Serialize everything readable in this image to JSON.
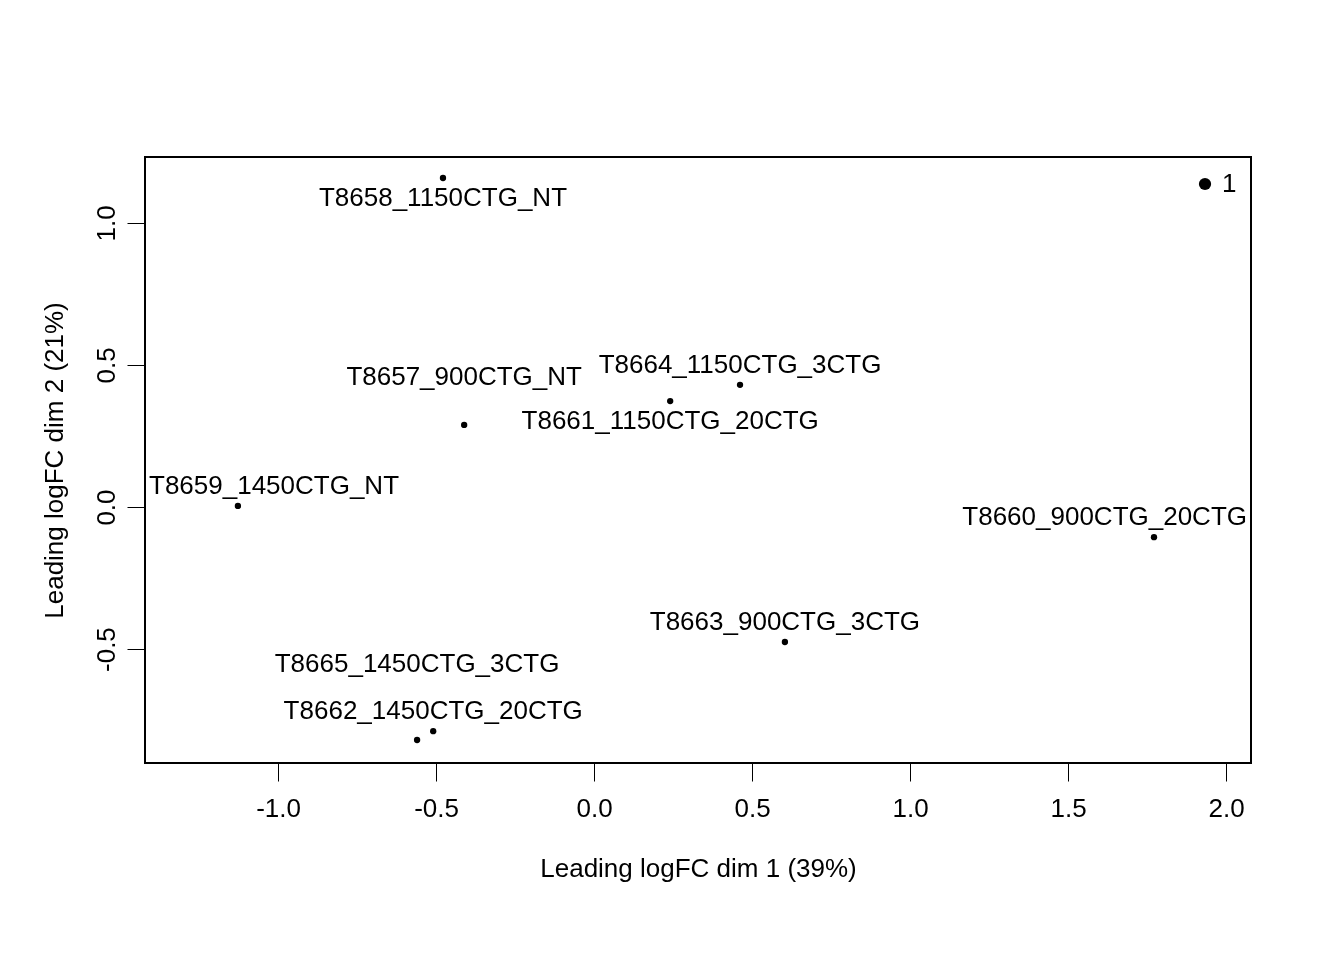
{
  "chart_data": {
    "type": "scatter",
    "xlabel": "Leading logFC dim 1 (39%)",
    "ylabel": "Leading logFC dim 2 (21%)",
    "x": [
      -0.478,
      0.462,
      0.241,
      -0.411,
      -1.127,
      1.772,
      0.604,
      -0.509,
      -0.56
    ],
    "series": [
      {
        "name": "1",
        "color": "#000000",
        "values": [
          1.158,
          0.43,
          0.373,
          0.289,
          0.004,
          -0.106,
          -0.475,
          -0.789,
          -0.82
        ],
        "value_labels": [
          "T8658_1150CTG_NT",
          "T8664_1150CTG_3CTG",
          "T8661_1150CTG_20CTG",
          "T8657_900CTG_NT",
          "T8659_1450CTG_NT",
          "T8660_900CTG_20CTG",
          "T8663_900CTG_3CTG",
          "T8662_1450CTG_20CTG",
          "T8665_1450CTG_3CTG"
        ]
      }
    ],
    "marker": "circle",
    "legend": "top right",
    "grid": false,
    "xlim": [
      -1.421,
      2.079
    ],
    "ylim": [
      -0.901,
      1.232
    ],
    "xticks": [
      {
        "value": -1,
        "label": "-1.0"
      },
      {
        "value": -0.5,
        "label": "-0.5"
      },
      {
        "value": 0,
        "label": "0.0"
      },
      {
        "value": 0.5,
        "label": "0.5"
      },
      {
        "value": 1,
        "label": "1.0"
      },
      {
        "value": 1.5,
        "label": "1.5"
      },
      {
        "value": 2,
        "label": "2.0"
      }
    ],
    "yticks": [
      {
        "value": -0.5,
        "label": "-0.5"
      },
      {
        "value": 0,
        "label": "0.0"
      },
      {
        "value": 0.5,
        "label": "0.5"
      },
      {
        "value": 1,
        "label": "1.0"
      }
    ]
  }
}
